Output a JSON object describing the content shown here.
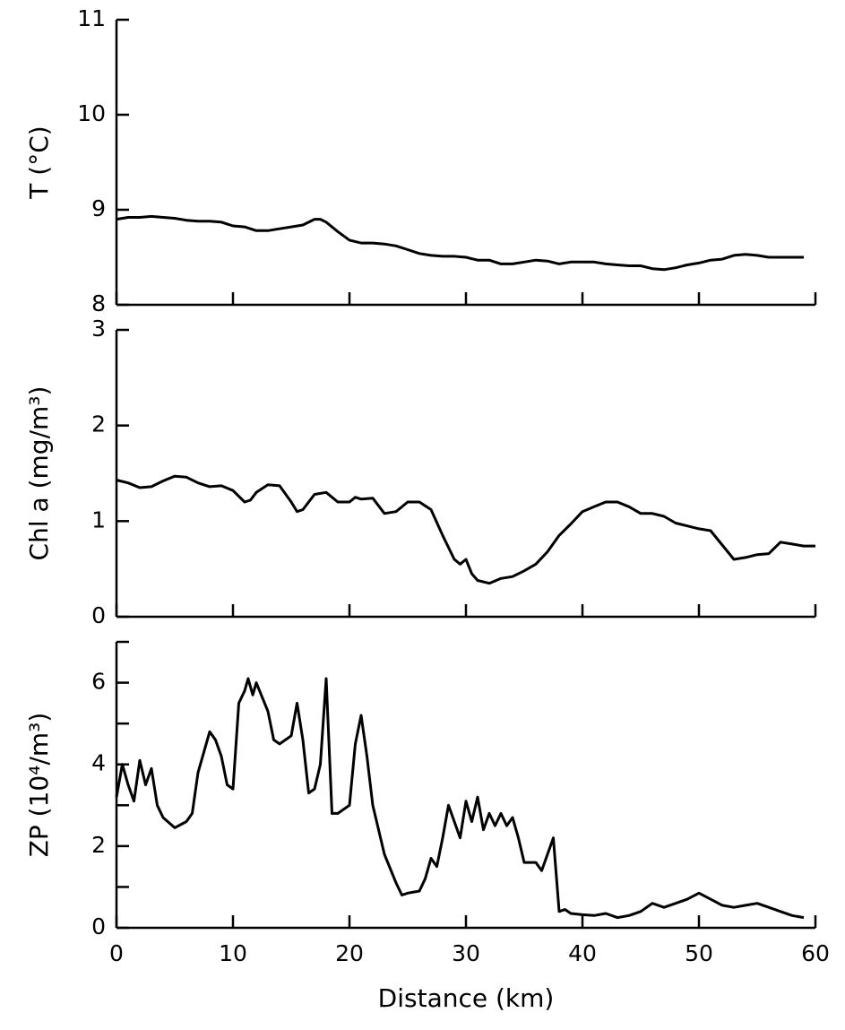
{
  "chart_data": [
    {
      "type": "line",
      "ylabel": "T (°C)",
      "color": "#000000",
      "x": [
        0,
        1,
        2,
        3,
        4,
        5,
        6,
        7,
        8,
        9,
        10,
        11,
        12,
        13,
        14,
        15,
        16,
        17,
        17.5,
        18,
        19,
        20,
        21,
        22,
        23,
        24,
        25,
        26,
        27,
        28,
        29,
        30,
        31,
        32,
        33,
        34,
        35,
        36,
        37,
        38,
        39,
        40,
        41,
        42,
        43,
        44,
        45,
        46,
        47,
        48,
        49,
        50,
        51,
        52,
        53,
        54,
        55,
        56,
        57,
        58,
        59
      ],
      "values": [
        8.9,
        8.92,
        8.92,
        8.93,
        8.92,
        8.91,
        8.89,
        8.88,
        8.88,
        8.87,
        8.83,
        8.82,
        8.78,
        8.78,
        8.8,
        8.82,
        8.84,
        8.9,
        8.9,
        8.87,
        8.77,
        8.68,
        8.65,
        8.65,
        8.64,
        8.62,
        8.58,
        8.54,
        8.52,
        8.51,
        8.51,
        8.5,
        8.47,
        8.47,
        8.43,
        8.43,
        8.45,
        8.47,
        8.46,
        8.43,
        8.45,
        8.45,
        8.45,
        8.43,
        8.42,
        8.41,
        8.41,
        8.38,
        8.37,
        8.39,
        8.42,
        8.44,
        8.47,
        8.48,
        8.52,
        8.53,
        8.52,
        8.5,
        8.5,
        8.5,
        8.5
      ],
      "xlim": [
        0,
        60
      ],
      "xticks": [
        0,
        10,
        20,
        30,
        40,
        50,
        60
      ],
      "ylim": [
        8,
        11
      ],
      "yticks": [
        8,
        9,
        10,
        11
      ]
    },
    {
      "type": "line",
      "ylabel": "Chl a (mg/m³)",
      "color": "#000000",
      "x": [
        0,
        1,
        2,
        3,
        4,
        5,
        6,
        7,
        8,
        9,
        10,
        11,
        11.5,
        12,
        13,
        14,
        15,
        15.5,
        16,
        17,
        18,
        19,
        20,
        20.5,
        21,
        22,
        23,
        24,
        25,
        26,
        27,
        28,
        29,
        29.5,
        30,
        30.5,
        31,
        32,
        33,
        34,
        35,
        36,
        37,
        38,
        39,
        40,
        41,
        42,
        43,
        44,
        45,
        46,
        47,
        48,
        49,
        50,
        51,
        52,
        53,
        54,
        55,
        56,
        57,
        58,
        59,
        60
      ],
      "values": [
        1.43,
        1.4,
        1.35,
        1.36,
        1.42,
        1.47,
        1.46,
        1.4,
        1.36,
        1.37,
        1.32,
        1.2,
        1.22,
        1.3,
        1.38,
        1.37,
        1.2,
        1.1,
        1.12,
        1.28,
        1.3,
        1.2,
        1.2,
        1.25,
        1.23,
        1.24,
        1.08,
        1.1,
        1.2,
        1.2,
        1.12,
        0.85,
        0.6,
        0.55,
        0.6,
        0.45,
        0.38,
        0.35,
        0.4,
        0.42,
        0.48,
        0.55,
        0.68,
        0.85,
        0.97,
        1.1,
        1.15,
        1.2,
        1.2,
        1.15,
        1.08,
        1.08,
        1.05,
        0.98,
        0.95,
        0.92,
        0.9,
        0.75,
        0.6,
        0.62,
        0.65,
        0.66,
        0.78,
        0.76,
        0.74,
        0.74
      ],
      "xlim": [
        0,
        60
      ],
      "xticks": [
        0,
        10,
        20,
        30,
        40,
        50,
        60
      ],
      "ylim": [
        0,
        3
      ],
      "yticks": [
        0,
        1,
        2,
        3
      ]
    },
    {
      "type": "line",
      "ylabel": "ZP (10⁴/m³)",
      "xlabel": "Distance (km)",
      "color": "#000000",
      "xtick_labels": true,
      "x": [
        0,
        0.5,
        1,
        1.5,
        2,
        2.5,
        3,
        3.5,
        4,
        5,
        6,
        6.5,
        7,
        8,
        8.5,
        9,
        9.5,
        10,
        10.5,
        11,
        11.3,
        11.7,
        12,
        13,
        13.5,
        14,
        15,
        15.5,
        16,
        16.5,
        17,
        17.5,
        18,
        18.5,
        19,
        20,
        20.5,
        21,
        21.5,
        22,
        23,
        24,
        24.5,
        25,
        26,
        26.5,
        27,
        27.5,
        28,
        28.5,
        29,
        29.5,
        30,
        30.5,
        31,
        31.5,
        32,
        32.5,
        33,
        33.5,
        34,
        34.5,
        35,
        36,
        36.5,
        37,
        37.5,
        38,
        38.5,
        39,
        40,
        41,
        42,
        43,
        44,
        45,
        46,
        47,
        48,
        49,
        50,
        51,
        52,
        53,
        54,
        55,
        56,
        57,
        58,
        59
      ],
      "values": [
        3.2,
        4.0,
        3.5,
        3.1,
        4.1,
        3.5,
        3.9,
        3.0,
        2.7,
        2.45,
        2.6,
        2.8,
        3.8,
        4.8,
        4.6,
        4.2,
        3.5,
        3.4,
        5.5,
        5.8,
        6.1,
        5.7,
        6.0,
        5.3,
        4.6,
        4.5,
        4.7,
        5.5,
        4.6,
        3.3,
        3.4,
        4.0,
        6.1,
        2.8,
        2.8,
        3.0,
        4.5,
        5.2,
        4.2,
        3.0,
        1.8,
        1.1,
        0.8,
        0.85,
        0.9,
        1.2,
        1.7,
        1.5,
        2.2,
        3.0,
        2.6,
        2.2,
        3.1,
        2.6,
        3.2,
        2.4,
        2.8,
        2.5,
        2.8,
        2.5,
        2.7,
        2.2,
        1.6,
        1.6,
        1.4,
        1.8,
        2.2,
        0.4,
        0.45,
        0.35,
        0.32,
        0.3,
        0.35,
        0.25,
        0.3,
        0.4,
        0.6,
        0.5,
        0.6,
        0.7,
        0.85,
        0.7,
        0.55,
        0.5,
        0.55,
        0.6,
        0.5,
        0.4,
        0.3,
        0.25
      ],
      "xlim": [
        0,
        60
      ],
      "xticks": [
        0,
        10,
        20,
        30,
        40,
        50,
        60
      ],
      "ylim": [
        0,
        7
      ],
      "yticks": [
        0,
        2,
        4,
        6
      ],
      "yminorticks": [
        1,
        3,
        5,
        7
      ]
    }
  ]
}
